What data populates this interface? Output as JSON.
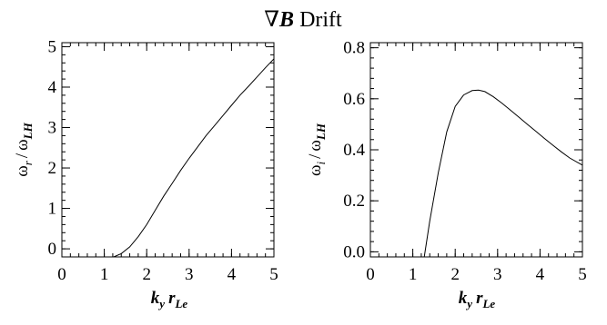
{
  "figure": {
    "title_symbol": "∇",
    "title_bold": "B",
    "title_rest": " Drift"
  },
  "chart_data": [
    {
      "type": "line",
      "xlabel": {
        "main": "k",
        "sub1": "y",
        "mid": "r",
        "sub2": "Le"
      },
      "ylabel": {
        "num": "ω",
        "num_sub": "r",
        "sep": "/",
        "den": "ω",
        "den_sub": "LH"
      },
      "xlim": [
        0,
        5
      ],
      "ylim": [
        -0.2,
        5.1
      ],
      "xticks": [
        0,
        1,
        2,
        3,
        4,
        5
      ],
      "yticks": [
        0,
        1,
        2,
        3,
        4,
        5
      ],
      "xtick_labels": [
        "0",
        "1",
        "2",
        "3",
        "4",
        "5"
      ],
      "ytick_labels": [
        "0",
        "1",
        "2",
        "3",
        "4",
        "5"
      ],
      "minor_x_step": 0.2,
      "minor_y_step": 0.2,
      "grid": false,
      "series": [
        {
          "x": [
            1.22,
            1.4,
            1.6,
            1.8,
            2.0,
            2.2,
            2.4,
            2.6,
            2.8,
            3.0,
            3.2,
            3.4,
            3.6,
            3.8,
            4.0,
            4.2,
            4.4,
            4.6,
            4.8,
            5.0
          ],
          "y": [
            -0.2,
            -0.12,
            0.05,
            0.3,
            0.6,
            0.95,
            1.3,
            1.62,
            1.94,
            2.24,
            2.52,
            2.8,
            3.05,
            3.3,
            3.55,
            3.8,
            4.02,
            4.25,
            4.48,
            4.7
          ]
        }
      ]
    },
    {
      "type": "line",
      "xlabel": {
        "main": "k",
        "sub1": "y",
        "mid": "r",
        "sub2": "Le"
      },
      "ylabel": {
        "num": "ω",
        "num_sub": "i",
        "sep": "/",
        "den": "ω",
        "den_sub": "LH"
      },
      "xlim": [
        0,
        5
      ],
      "ylim": [
        -0.02,
        0.82
      ],
      "xticks": [
        0,
        1,
        2,
        3,
        4,
        5
      ],
      "yticks": [
        0,
        0.2,
        0.4,
        0.6,
        0.8
      ],
      "xtick_labels": [
        "0",
        "1",
        "2",
        "3",
        "4",
        "5"
      ],
      "ytick_labels": [
        "0.0",
        "0.2",
        "0.4",
        "0.6",
        "0.8"
      ],
      "minor_x_step": 0.2,
      "minor_y_step": 0.04,
      "grid": false,
      "series": [
        {
          "x": [
            1.27,
            1.4,
            1.6,
            1.8,
            2.0,
            2.2,
            2.4,
            2.55,
            2.7,
            2.9,
            3.1,
            3.3,
            3.5,
            3.7,
            3.9,
            4.1,
            4.3,
            4.5,
            4.7,
            5.0
          ],
          "y": [
            -0.02,
            0.12,
            0.31,
            0.47,
            0.57,
            0.615,
            0.632,
            0.634,
            0.628,
            0.608,
            0.583,
            0.556,
            0.528,
            0.5,
            0.473,
            0.445,
            0.418,
            0.392,
            0.368,
            0.34
          ]
        }
      ]
    }
  ]
}
